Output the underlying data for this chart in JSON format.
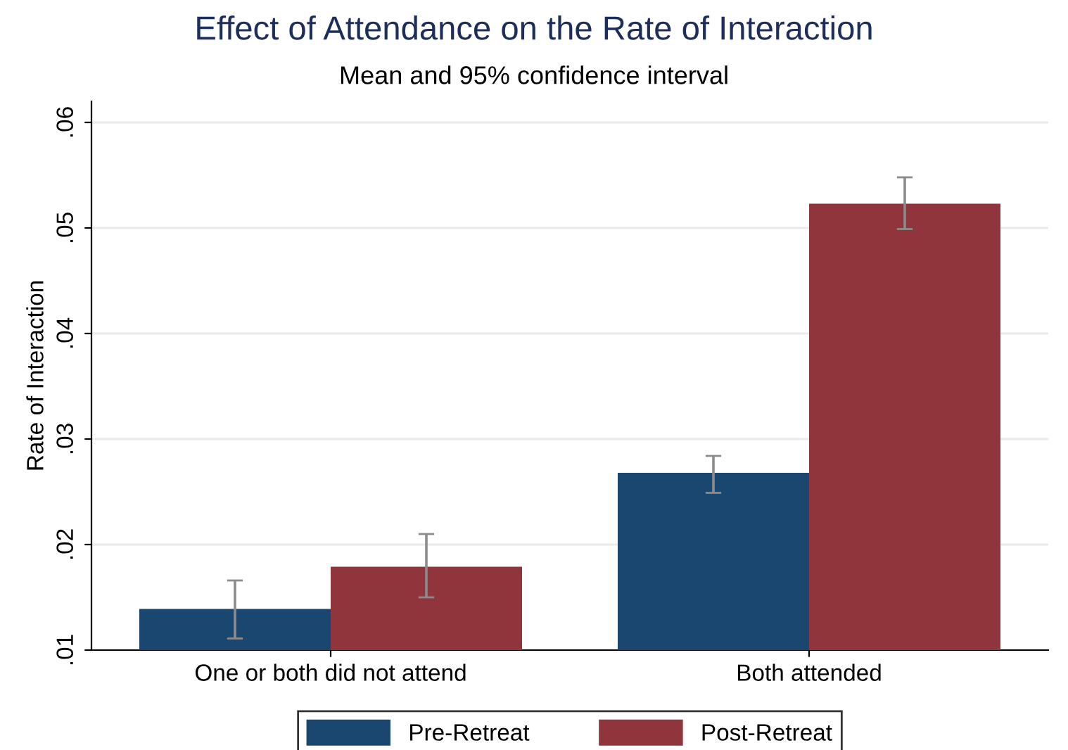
{
  "chart_data": {
    "type": "bar",
    "title": "Effect of Attendance on the Rate of Interaction",
    "subtitle": "Mean and 95% confidence interval",
    "ylabel": "Rate of Interaction",
    "categories": [
      "One or both did not attend",
      "Both attended"
    ],
    "series": [
      {
        "name": "Pre-Retreat",
        "color": "#1a476f",
        "values": [
          0.0139,
          0.0268
        ],
        "errors": [
          [
            0.0111,
            0.0166
          ],
          [
            0.0249,
            0.0284
          ]
        ]
      },
      {
        "name": "Post-Retreat",
        "color": "#90353b",
        "values": [
          0.0179,
          0.0523
        ],
        "errors": [
          [
            0.015,
            0.021
          ],
          [
            0.0499,
            0.0548
          ]
        ]
      }
    ],
    "ylim": [
      0.01,
      0.062
    ],
    "yticks": [
      {
        "value": 0.01,
        "label": ".01"
      },
      {
        "value": 0.02,
        "label": ".02"
      },
      {
        "value": 0.03,
        "label": ".03"
      },
      {
        "value": 0.04,
        "label": ".04"
      },
      {
        "value": 0.05,
        "label": ".05"
      },
      {
        "value": 0.06,
        "label": ".06"
      }
    ],
    "grid": "y",
    "legend": "bottom"
  }
}
